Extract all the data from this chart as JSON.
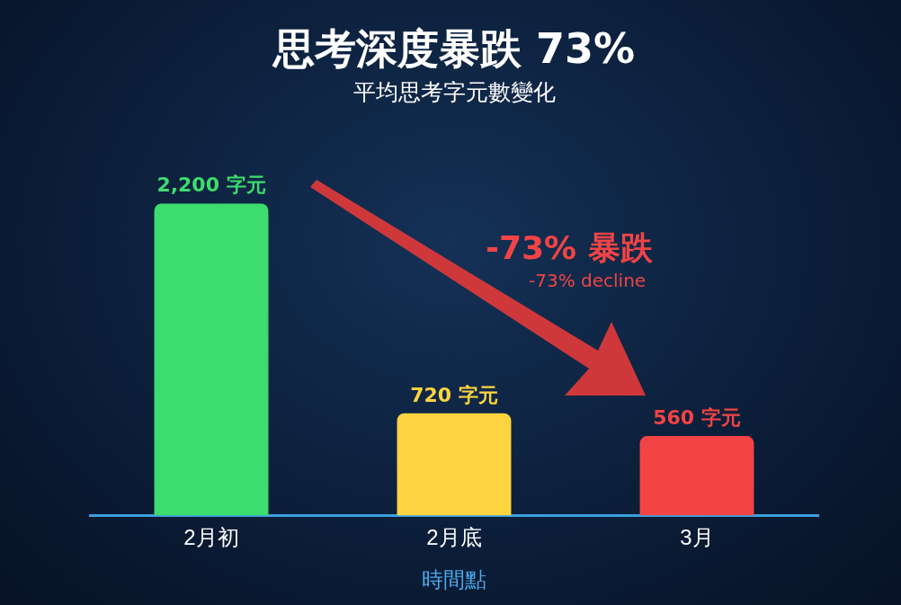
{
  "chart_data": {
    "type": "bar",
    "title": "思考深度暴跌 73%",
    "subtitle": "平均思考字元數變化",
    "xlabel": "時間點",
    "categories": [
      "2月初",
      "2月底",
      "3月"
    ],
    "values": [
      2200,
      720,
      560
    ],
    "colors": [
      "#3ddc6e",
      "#fdd43f",
      "#f24444"
    ],
    "value_labels": [
      "2,200 字元",
      "720 字元",
      "560 字元"
    ],
    "tick_labels": "x",
    "annotations": [
      "-73% 暴跌",
      "-73% decline"
    ]
  }
}
